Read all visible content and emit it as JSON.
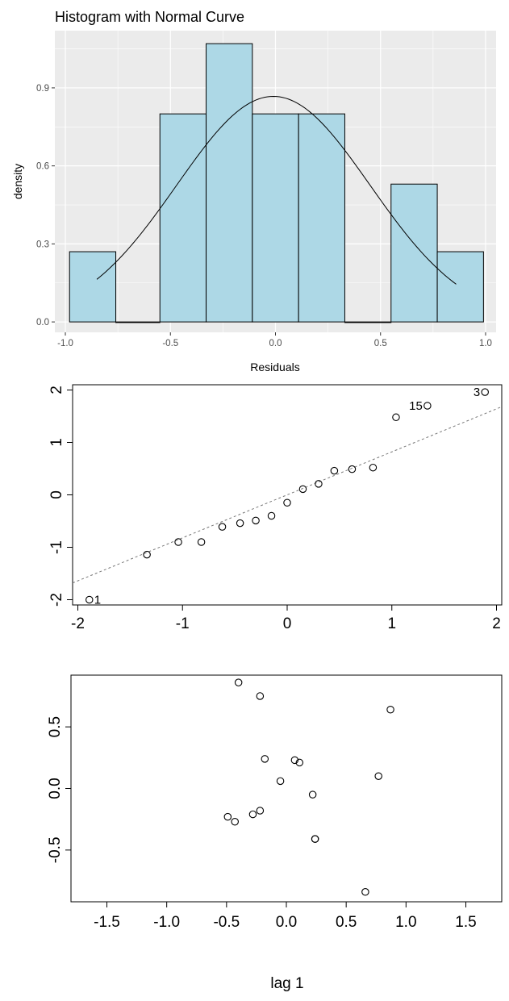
{
  "chart_data": [
    {
      "type": "bar",
      "title": "Histogram with Normal Curve",
      "xlabel": "Residuals",
      "ylabel": "density",
      "xlim": [
        -1.05,
        1.05
      ],
      "ylim": [
        -0.04,
        1.12
      ],
      "x_ticks": [
        "-1.0",
        "-0.5",
        "0.0",
        "0.5",
        "1.0"
      ],
      "y_ticks": [
        "0.0",
        "0.3",
        "0.6",
        "0.9"
      ],
      "bins": [
        {
          "x0": -0.98,
          "x1": -0.76,
          "density": 0.27
        },
        {
          "x0": -0.76,
          "x1": -0.55,
          "density": 0.0
        },
        {
          "x0": -0.55,
          "x1": -0.33,
          "density": 0.8
        },
        {
          "x0": -0.33,
          "x1": -0.11,
          "density": 1.07
        },
        {
          "x0": -0.11,
          "x1": 0.11,
          "density": 0.8
        },
        {
          "x0": 0.11,
          "x1": 0.33,
          "density": 0.8
        },
        {
          "x0": 0.33,
          "x1": 0.55,
          "density": 0.0
        },
        {
          "x0": 0.55,
          "x1": 0.77,
          "density": 0.53
        },
        {
          "x0": 0.77,
          "x1": 0.99,
          "density": 0.27
        }
      ],
      "normal_curve": {
        "mean": -0.01,
        "sd": 0.46,
        "x_from": -0.85,
        "x_to": 0.86
      },
      "colors": {
        "fill": "#add8e6",
        "panel": "#ebebeb",
        "grid": "#ffffff",
        "curve": "#000000"
      },
      "grid": true
    },
    {
      "type": "scatter",
      "title": "",
      "xlabel": "",
      "ylabel": "",
      "xlim": [
        -2.05,
        2.05
      ],
      "ylim": [
        -2.1,
        2.1
      ],
      "x_ticks": [
        "-2",
        "-1",
        "0",
        "1",
        "2"
      ],
      "y_ticks": [
        "-2",
        "-1",
        "0",
        "1",
        "2"
      ],
      "points": [
        {
          "x": -1.89,
          "y": -2.0,
          "label": "1"
        },
        {
          "x": -1.34,
          "y": -1.14
        },
        {
          "x": -1.04,
          "y": -0.9
        },
        {
          "x": -0.82,
          "y": -0.9
        },
        {
          "x": -0.62,
          "y": -0.61
        },
        {
          "x": -0.45,
          "y": -0.54
        },
        {
          "x": -0.3,
          "y": -0.49
        },
        {
          "x": -0.15,
          "y": -0.4
        },
        {
          "x": 0.0,
          "y": -0.15
        },
        {
          "x": 0.15,
          "y": 0.11
        },
        {
          "x": 0.3,
          "y": 0.21
        },
        {
          "x": 0.45,
          "y": 0.46
        },
        {
          "x": 0.62,
          "y": 0.49
        },
        {
          "x": 0.82,
          "y": 0.52
        },
        {
          "x": 1.04,
          "y": 1.48
        },
        {
          "x": 1.34,
          "y": 1.7,
          "label": "15"
        },
        {
          "x": 1.89,
          "y": 1.96,
          "label": "3"
        }
      ],
      "reference_line": {
        "intercept": 0.0,
        "slope": 0.82
      },
      "grid": false
    },
    {
      "type": "scatter",
      "title": "",
      "xlabel": "lag 1",
      "ylabel": "",
      "xlim": [
        -1.8,
        1.8
      ],
      "ylim": [
        -0.92,
        0.92
      ],
      "x_ticks": [
        "-1.5",
        "-1.0",
        "-0.5",
        "0.0",
        "0.5",
        "1.0",
        "1.5"
      ],
      "y_ticks": [
        "-0.5",
        "0.0",
        "0.5"
      ],
      "points": [
        {
          "x": -0.4,
          "y": 0.86
        },
        {
          "x": -0.22,
          "y": 0.75
        },
        {
          "x": 0.87,
          "y": 0.64
        },
        {
          "x": -0.18,
          "y": 0.24
        },
        {
          "x": 0.07,
          "y": 0.23
        },
        {
          "x": 0.11,
          "y": 0.21
        },
        {
          "x": 0.77,
          "y": 0.1
        },
        {
          "x": -0.05,
          "y": 0.06
        },
        {
          "x": 0.22,
          "y": -0.05
        },
        {
          "x": -0.22,
          "y": -0.18
        },
        {
          "x": -0.28,
          "y": -0.21
        },
        {
          "x": -0.49,
          "y": -0.23
        },
        {
          "x": -0.43,
          "y": -0.27
        },
        {
          "x": 0.24,
          "y": -0.41
        },
        {
          "x": 0.24,
          "y": -0.41
        },
        {
          "x": 0.66,
          "y": -0.84
        }
      ],
      "grid": false
    }
  ]
}
